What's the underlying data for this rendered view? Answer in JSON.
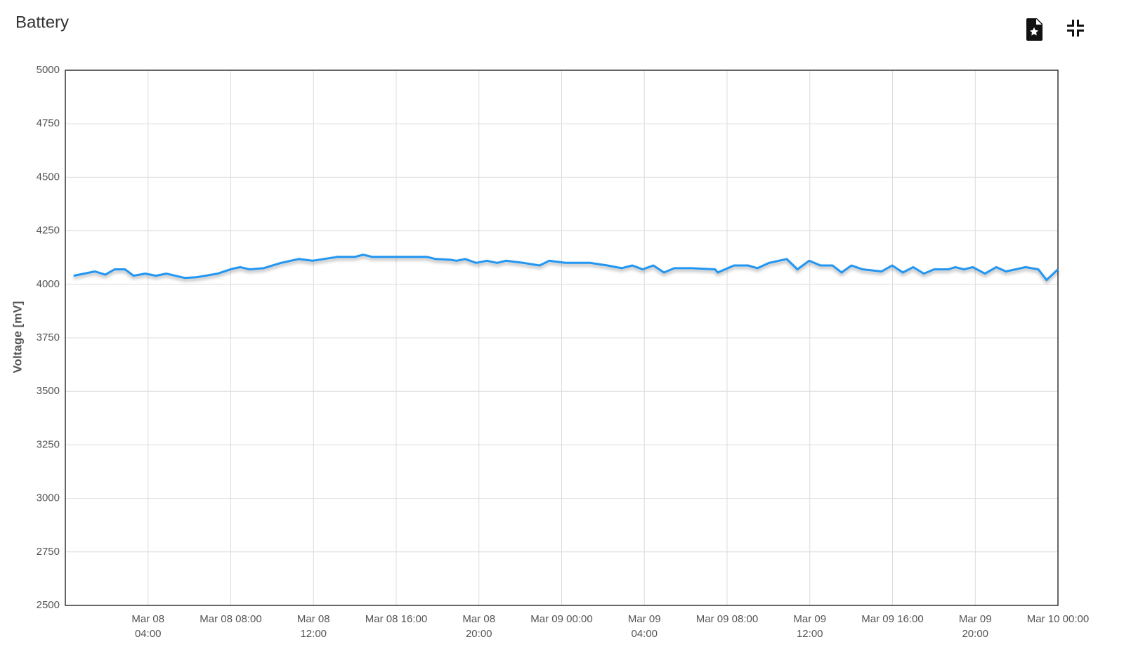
{
  "chart_data": {
    "type": "line",
    "title": "Battery",
    "y_label": "Voltage [mV]",
    "x": [
      "Mar 08 00:24",
      "Mar 08 01:26",
      "Mar 08 01:56",
      "Mar 08 02:23",
      "Mar 08 02:53",
      "Mar 08 03:18",
      "Mar 08 03:52",
      "Mar 08 04:23",
      "Mar 08 04:53",
      "Mar 08 05:46",
      "Mar 08 06:21",
      "Mar 08 07:22",
      "Mar 08 08:03",
      "Mar 08 08:28",
      "Mar 08 08:54",
      "Mar 08 09:35",
      "Mar 08 10:26",
      "Mar 08 11:17",
      "Mar 08 11:57",
      "Mar 08 13:09",
      "Mar 08 14:00",
      "Mar 08 14:24",
      "Mar 08 14:51",
      "Mar 08 16:12",
      "Mar 08 17:30",
      "Mar 08 17:54",
      "Mar 08 18:35",
      "Mar 08 18:55",
      "Mar 08 19:20",
      "Mar 08 19:52",
      "Mar 08 20:23",
      "Mar 08 20:53",
      "Mar 08 21:18",
      "Mar 08 22:09",
      "Mar 08 22:56",
      "Mar 08 23:24",
      "Mar 09 00:11",
      "Mar 09 01:23",
      "Mar 09 02:13",
      "Mar 09 02:54",
      "Mar 09 03:25",
      "Mar 09 03:55",
      "Mar 09 04:26",
      "Mar 09 04:57",
      "Mar 09 05:27",
      "Mar 09 06:18",
      "Mar 09 07:25",
      "Mar 09 07:33",
      "Mar 09 08:20",
      "Mar 09 09:01",
      "Mar 09 09:28",
      "Mar 09 10:02",
      "Mar 09 10:53",
      "Mar 09 11:24",
      "Mar 09 11:58",
      "Mar 09 12:31",
      "Mar 09 13:06",
      "Mar 09 13:32",
      "Mar 09 14:01",
      "Mar 09 14:33",
      "Mar 09 15:28",
      "Mar 09 15:59",
      "Mar 09 16:30",
      "Mar 09 17:00",
      "Mar 09 17:31",
      "Mar 09 18:01",
      "Mar 09 18:42",
      "Mar 09 19:02",
      "Mar 09 19:27",
      "Mar 09 19:53",
      "Mar 09 20:28",
      "Mar 09 21:01",
      "Mar 09 21:29",
      "Mar 09 22:26",
      "Mar 09 23:03",
      "Mar 09 23:27",
      "Mar 10 00:00"
    ],
    "values": [
      4040,
      4060,
      4045,
      4070,
      4070,
      4040,
      4050,
      4040,
      4050,
      4030,
      4033,
      4050,
      4072,
      4080,
      4070,
      4075,
      4100,
      4118,
      4110,
      4128,
      4128,
      4138,
      4128,
      4128,
      4128,
      4118,
      4115,
      4110,
      4118,
      4100,
      4110,
      4100,
      4110,
      4100,
      4088,
      4110,
      4100,
      4100,
      4088,
      4075,
      4088,
      4070,
      4088,
      4055,
      4075,
      4075,
      4070,
      4055,
      4088,
      4088,
      4075,
      4100,
      4118,
      4070,
      4110,
      4088,
      4088,
      4055,
      4088,
      4070,
      4060,
      4088,
      4055,
      4080,
      4050,
      4070,
      4070,
      4080,
      4070,
      4080,
      4050,
      4080,
      4060,
      4080,
      4070,
      4020,
      4070
    ],
    "color": "#2196f3",
    "xlim": [
      "Mar 08 00:00",
      "Mar 10 00:00"
    ],
    "xticks": [
      "Mar 08 04:00",
      "Mar 08 08:00",
      "Mar 08 12:00",
      "Mar 08 16:00",
      "Mar 08 20:00",
      "Mar 09 00:00",
      "Mar 09 04:00",
      "Mar 09 08:00",
      "Mar 09 12:00",
      "Mar 09 16:00",
      "Mar 09 20:00",
      "Mar 10 00:00"
    ],
    "ylim": [
      2500,
      5000
    ],
    "yticks": [
      2500,
      2750,
      3000,
      3250,
      3500,
      3750,
      4000,
      4250,
      4500,
      4750,
      5000
    ],
    "grid": true
  }
}
